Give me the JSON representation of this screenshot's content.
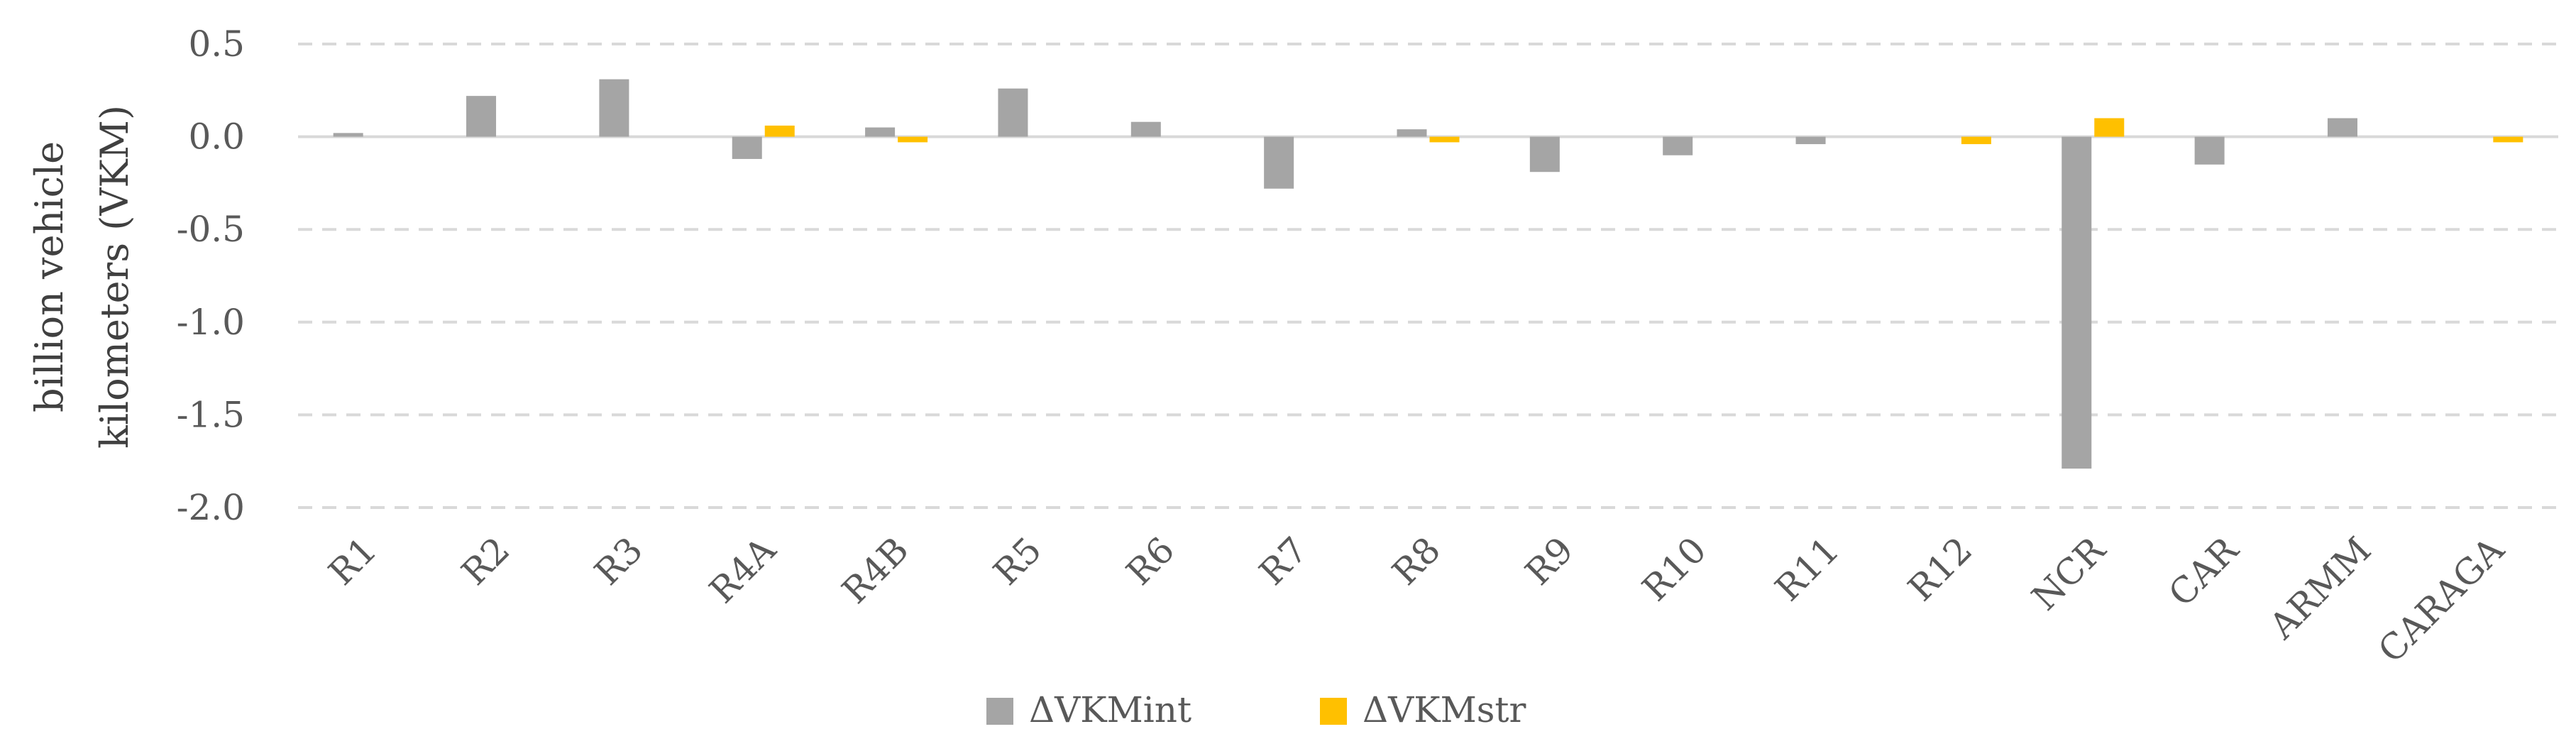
{
  "chart_data": {
    "type": "bar",
    "title": "",
    "xlabel": "",
    "ylabel_lines": [
      "billion vehicle",
      "kilometers (VKM)"
    ],
    "categories": [
      "R1",
      "R2",
      "R3",
      "R4A",
      "R4B",
      "R5",
      "R6",
      "R7",
      "R8",
      "R9",
      "R10",
      "R11",
      "R12",
      "NCR",
      "CAR",
      "ARMM",
      "CARAGA"
    ],
    "series": [
      {
        "name": "ΔVKMint",
        "color": "#a5a5a5",
        "values": [
          0.02,
          0.22,
          0.31,
          -0.12,
          0.05,
          0.26,
          0.08,
          -0.28,
          0.04,
          -0.19,
          -0.1,
          -0.04,
          0.0,
          -1.79,
          -0.15,
          0.1,
          0.0
        ]
      },
      {
        "name": "ΔVKMstr",
        "color": "#ffc000",
        "values": [
          0.0,
          0.0,
          0.0,
          0.06,
          -0.03,
          0.0,
          0.0,
          0.0,
          -0.03,
          0.0,
          0.0,
          0.0,
          -0.04,
          0.1,
          0.0,
          0.0,
          -0.03
        ]
      }
    ],
    "ylim": [
      -2.0,
      0.5
    ],
    "yticks": [
      "0.5",
      "0.0",
      "-0.5",
      "-1.0",
      "-1.5",
      "-2.0"
    ],
    "ytick_values": [
      0.5,
      0.0,
      -0.5,
      -1.0,
      -1.5,
      -2.0
    ],
    "grid": true,
    "legend_position": "bottom"
  }
}
